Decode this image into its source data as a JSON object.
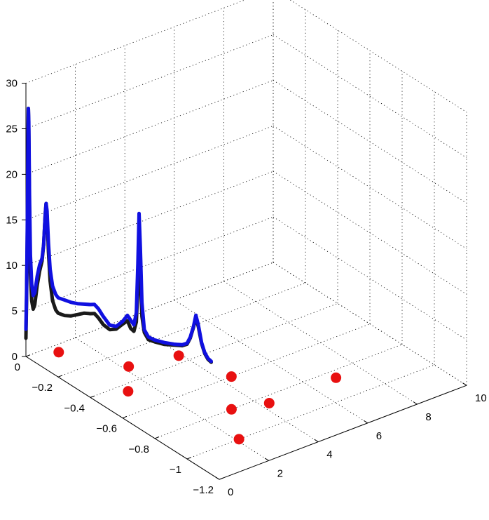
{
  "chart_data": {
    "type": "line",
    "projection": "3d",
    "title": "",
    "xlabel": "",
    "ylabel": "",
    "zlabel": "",
    "grid": true,
    "xlim": [
      0,
      10
    ],
    "ylim": [
      -1.2,
      0
    ],
    "zlim": [
      0,
      30
    ],
    "x_ticks": [
      0,
      2,
      4,
      6,
      8,
      10
    ],
    "y_ticks": [
      0,
      -0.2,
      -0.4,
      -0.6,
      -0.8,
      -1,
      -1.2
    ],
    "z_ticks": [
      0,
      5,
      10,
      15,
      20,
      25,
      30
    ],
    "x_tick_labels": [
      "0",
      "2",
      "4",
      "6",
      "8",
      "10"
    ],
    "y_tick_labels": [
      "0",
      "−0.2",
      "−0.4",
      "−0.6",
      "−0.8",
      "−1",
      "−1.2"
    ],
    "z_tick_labels": [
      "0",
      "5",
      "10",
      "15",
      "20",
      "25",
      "30"
    ],
    "series": [
      {
        "color": "#1010e0",
        "points_yz": [
          [
            0,
            3.0
          ],
          [
            -0.004,
            7.0
          ],
          [
            -0.008,
            13.0
          ],
          [
            -0.012,
            22.0
          ],
          [
            -0.015,
            27.4
          ],
          [
            -0.018,
            26.0
          ],
          [
            -0.022,
            18.0
          ],
          [
            -0.028,
            11.5
          ],
          [
            -0.036,
            8.3
          ],
          [
            -0.045,
            7.2
          ],
          [
            -0.055,
            7.6
          ],
          [
            -0.07,
            9.6
          ],
          [
            -0.085,
            11.0
          ],
          [
            -0.1,
            11.9
          ],
          [
            -0.11,
            13.5
          ],
          [
            -0.12,
            17.0
          ],
          [
            -0.125,
            18.2
          ],
          [
            -0.131,
            17.5
          ],
          [
            -0.14,
            14.0
          ],
          [
            -0.15,
            11.3
          ],
          [
            -0.165,
            9.6
          ],
          [
            -0.185,
            8.9
          ],
          [
            -0.2,
            8.7
          ],
          [
            -0.24,
            8.9
          ],
          [
            -0.28,
            9.1
          ],
          [
            -0.32,
            9.4
          ],
          [
            -0.36,
            9.8
          ],
          [
            -0.4,
            10.2
          ],
          [
            -0.425,
            10.5
          ],
          [
            -0.45,
            10.3
          ],
          [
            -0.48,
            9.8
          ],
          [
            -0.52,
            9.3
          ],
          [
            -0.56,
            9.6
          ],
          [
            -0.6,
            10.6
          ],
          [
            -0.63,
            11.6
          ],
          [
            -0.65,
            11.3
          ],
          [
            -0.67,
            11.0
          ],
          [
            -0.685,
            12.5
          ],
          [
            -0.695,
            18.0
          ],
          [
            -0.702,
            23.6
          ],
          [
            -0.71,
            20.0
          ],
          [
            -0.72,
            14.0
          ],
          [
            -0.735,
            11.2
          ],
          [
            -0.76,
            10.7
          ],
          [
            -0.8,
            10.8
          ],
          [
            -0.86,
            11.2
          ],
          [
            -0.92,
            11.7
          ],
          [
            -0.97,
            12.2
          ],
          [
            -1.0,
            12.7
          ],
          [
            -1.02,
            13.6
          ],
          [
            -1.04,
            15.0
          ],
          [
            -1.055,
            16.4
          ],
          [
            -1.07,
            15.5
          ],
          [
            -1.09,
            13.8
          ],
          [
            -1.11,
            12.9
          ],
          [
            -1.13,
            12.5
          ],
          [
            -1.15,
            12.4
          ]
        ]
      },
      {
        "color": "#1a1a1a",
        "points_yz": [
          [
            0,
            2.0
          ],
          [
            -0.004,
            6.0
          ],
          [
            -0.008,
            12.0
          ],
          [
            -0.012,
            21.0
          ],
          [
            -0.015,
            27.4
          ],
          [
            -0.018,
            25.0
          ],
          [
            -0.022,
            16.0
          ],
          [
            -0.028,
            9.5
          ],
          [
            -0.036,
            6.5
          ],
          [
            -0.045,
            5.7
          ],
          [
            -0.055,
            6.3
          ],
          [
            -0.07,
            8.6
          ],
          [
            -0.085,
            10.3
          ],
          [
            -0.1,
            11.6
          ],
          [
            -0.11,
            13.5
          ],
          [
            -0.12,
            17.0
          ],
          [
            -0.125,
            18.2
          ],
          [
            -0.131,
            17.0
          ],
          [
            -0.14,
            13.0
          ],
          [
            -0.15,
            10.0
          ],
          [
            -0.165,
            8.0
          ],
          [
            -0.185,
            7.2
          ],
          [
            -0.2,
            7.0
          ],
          [
            -0.24,
            7.2
          ],
          [
            -0.28,
            7.6
          ],
          [
            -0.32,
            8.2
          ],
          [
            -0.36,
            8.8
          ],
          [
            -0.4,
            9.2
          ],
          [
            -0.425,
            9.5
          ],
          [
            -0.45,
            9.3
          ],
          [
            -0.48,
            8.9
          ],
          [
            -0.52,
            8.8
          ],
          [
            -0.56,
            9.3
          ],
          [
            -0.6,
            10.3
          ],
          [
            -0.63,
            11.0
          ],
          [
            -0.65,
            10.4
          ],
          [
            -0.67,
            10.3
          ],
          [
            -0.685,
            11.5
          ],
          [
            -0.695,
            15.5
          ],
          [
            -0.702,
            18.8
          ],
          [
            -0.71,
            16.5
          ],
          [
            -0.72,
            12.5
          ],
          [
            -0.735,
            10.9
          ],
          [
            -0.76,
            10.4
          ],
          [
            -0.8,
            10.6
          ],
          [
            -0.86,
            11.0
          ],
          [
            -0.92,
            11.6
          ],
          [
            -0.97,
            12.1
          ],
          [
            -1.0,
            12.6
          ],
          [
            -1.02,
            13.5
          ],
          [
            -1.04,
            14.9
          ],
          [
            -1.055,
            16.2
          ],
          [
            -1.07,
            15.3
          ],
          [
            -1.09,
            13.7
          ],
          [
            -1.11,
            12.8
          ],
          [
            -1.13,
            12.4
          ],
          [
            -1.15,
            12.3
          ]
        ]
      }
    ],
    "markers": {
      "color": "#e81010",
      "points_xy": [
        [
          1.2,
          -0.45
        ],
        [
          1.0,
          -0.05
        ],
        [
          2.1,
          -1.0
        ],
        [
          3.1,
          -0.8
        ],
        [
          2.2,
          -0.3
        ],
        [
          4.3,
          -0.85
        ],
        [
          4.4,
          -0.6
        ],
        [
          3.9,
          -0.35
        ],
        [
          7.0,
          -0.85
        ]
      ]
    }
  }
}
